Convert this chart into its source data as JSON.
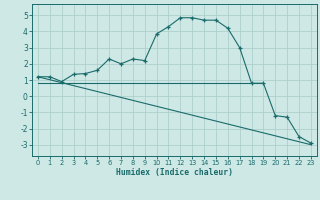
{
  "xlabel": "Humidex (Indice chaleur)",
  "ylabel": "",
  "bg_color": "#cde8e5",
  "line_color": "#1a6b6b",
  "grid_color": "#aed0cc",
  "xlim": [
    -0.5,
    23.5
  ],
  "ylim": [
    -3.7,
    5.7
  ],
  "xticks": [
    0,
    1,
    2,
    3,
    4,
    5,
    6,
    7,
    8,
    9,
    10,
    11,
    12,
    13,
    14,
    15,
    16,
    17,
    18,
    19,
    20,
    21,
    22,
    23
  ],
  "yticks": [
    -3,
    -2,
    -1,
    0,
    1,
    2,
    3,
    4,
    5
  ],
  "curve_x": [
    0,
    1,
    2,
    3,
    4,
    5,
    6,
    7,
    8,
    9,
    10,
    11,
    12,
    13,
    14,
    15,
    16,
    17,
    18,
    19,
    20,
    21,
    22,
    23
  ],
  "curve_y": [
    1.2,
    1.2,
    0.9,
    1.35,
    1.4,
    1.6,
    2.3,
    2.0,
    2.3,
    2.2,
    3.85,
    4.3,
    4.85,
    4.85,
    4.7,
    4.7,
    4.2,
    3.0,
    0.8,
    0.8,
    -1.2,
    -1.3,
    -2.5,
    -2.9
  ],
  "line1_x": [
    0,
    23
  ],
  "line1_y": [
    1.2,
    -3.0
  ],
  "line2_x": [
    0,
    19
  ],
  "line2_y": [
    0.8,
    0.8
  ],
  "marker_x": [
    0,
    1,
    2,
    3,
    4,
    5,
    6,
    7,
    8,
    9,
    10,
    11,
    12,
    13,
    14,
    15,
    16,
    17,
    18,
    19,
    20,
    21,
    22,
    23
  ],
  "marker_y": [
    1.2,
    1.2,
    0.9,
    1.35,
    1.4,
    1.6,
    2.3,
    2.0,
    2.3,
    2.2,
    3.85,
    4.3,
    4.85,
    4.85,
    4.7,
    4.7,
    4.2,
    3.0,
    0.8,
    0.8,
    -1.2,
    -1.3,
    -2.5,
    -2.9
  ]
}
